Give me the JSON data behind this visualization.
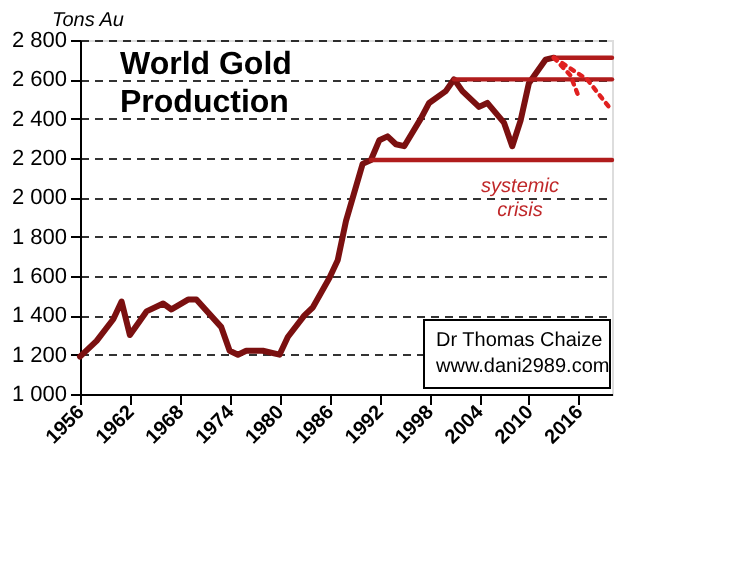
{
  "chart_data": {
    "type": "line",
    "title": "World Gold Production",
    "ylabel": "Tons Au",
    "annotations": [
      "systemic crisis",
      "Dr Thomas Chaize\nwww.dani2989.com"
    ],
    "xlim": [
      1956,
      2020
    ],
    "xticks": [
      1956,
      1962,
      1968,
      1974,
      1980,
      1986,
      1992,
      1998,
      2004,
      2010,
      2016
    ],
    "ylim": [
      1000,
      2800
    ],
    "yticks": [
      {
        "value": 1000,
        "label": "1 000"
      },
      {
        "value": 1200,
        "label": "1 200"
      },
      {
        "value": 1400,
        "label": "1 400"
      },
      {
        "value": 1600,
        "label": "1 600"
      },
      {
        "value": 1800,
        "label": "1 800"
      },
      {
        "value": 2000,
        "label": "2 000"
      },
      {
        "value": 2200,
        "label": "2 200"
      },
      {
        "value": 2400,
        "label": "2 400"
      },
      {
        "value": 2600,
        "label": "2 600"
      },
      {
        "value": 2800,
        "label": "2 800"
      }
    ],
    "grid": "y",
    "series": [
      {
        "color": "#7b1010",
        "x": [
          1956,
          1958,
          1960,
          1961,
          1962,
          1964,
          1966,
          1967,
          1969,
          1970,
          1973,
          1974,
          1975,
          1976,
          1978,
          1980,
          1981,
          1983,
          1984,
          1986,
          1987,
          1988,
          1990,
          1991,
          1992,
          1993,
          1994,
          1995,
          1997,
          1998,
          2000,
          2001,
          2002,
          2004,
          2005,
          2007,
          2008,
          2009,
          2010,
          2012,
          2013
        ],
        "values": [
          1190,
          1270,
          1380,
          1470,
          1300,
          1420,
          1460,
          1430,
          1480,
          1480,
          1340,
          1220,
          1200,
          1220,
          1220,
          1200,
          1290,
          1400,
          1440,
          1590,
          1680,
          1880,
          2170,
          2190,
          2290,
          2310,
          2270,
          2260,
          2400,
          2480,
          2540,
          2600,
          2540,
          2460,
          2480,
          2380,
          2260,
          2390,
          2580,
          2700,
          2710
        ]
      },
      {
        "type": "line",
        "color": "#b01c1c",
        "x": [
          2013,
          2020
        ],
        "values": [
          2710,
          2710
        ]
      },
      {
        "type": "line",
        "color": "#b01c1c",
        "x": [
          2001,
          2020
        ],
        "values": [
          2600,
          2600
        ]
      },
      {
        "type": "line",
        "color": "#b01c1c",
        "x": [
          1991,
          2020
        ],
        "values": [
          2190,
          2190
        ]
      },
      {
        "type": "line",
        "color": "#e02020",
        "line_style": "dotted",
        "x": [
          2013,
          2015,
          2016
        ],
        "values": [
          2710,
          2620,
          2510
        ]
      },
      {
        "type": "line",
        "color": "#e02020",
        "line_style": "dotted",
        "x": [
          2013,
          2017,
          2020
        ],
        "values": [
          2710,
          2600,
          2440
        ]
      }
    ]
  }
}
